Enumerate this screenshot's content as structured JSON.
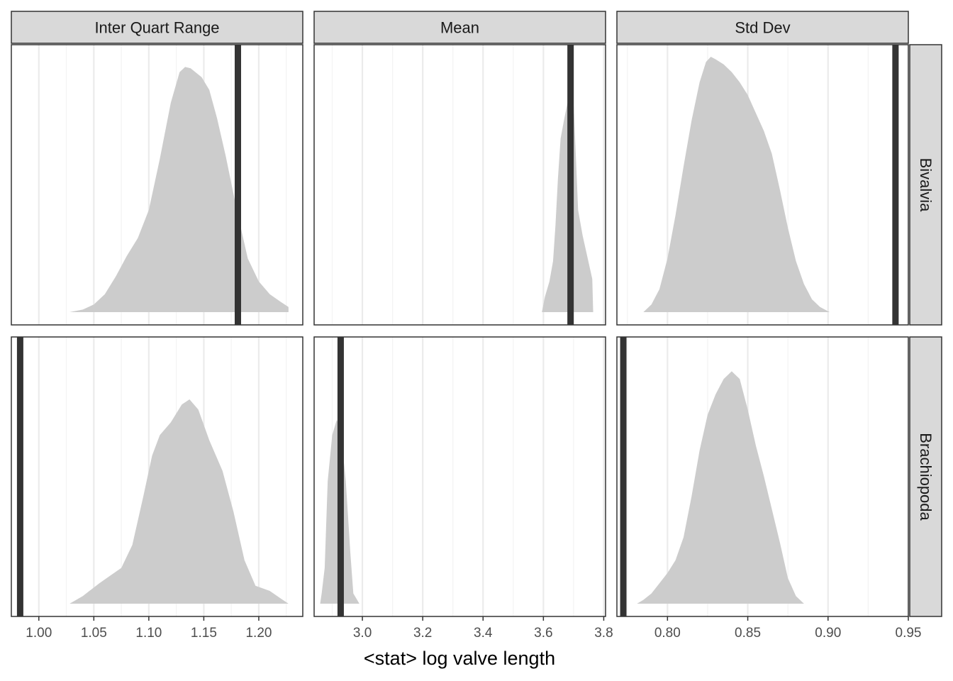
{
  "chart_data": {
    "type": "area",
    "xlabel": "<stat> log valve length",
    "ylabel": "",
    "grid": true,
    "columns": [
      "Inter Quart Range",
      "Mean",
      "Std Dev"
    ],
    "rows": [
      "Bivalvia",
      "Brachiopoda"
    ],
    "column_axes": [
      {
        "xlim": [
          0.975,
          1.24
        ],
        "ticks": [
          1.0,
          1.05,
          1.1,
          1.15,
          1.2
        ],
        "tick_labels": [
          "1.00",
          "1.05",
          "1.10",
          "1.15",
          "1.20"
        ]
      },
      {
        "xlim": [
          2.84,
          3.806
        ],
        "ticks": [
          3.0,
          3.2,
          3.4,
          3.6,
          3.8
        ],
        "tick_labels": [
          "3.0",
          "3.2",
          "3.4",
          "3.6",
          "3.8"
        ]
      },
      {
        "xlim": [
          0.7685,
          0.95
        ],
        "ticks": [
          0.8,
          0.85,
          0.9,
          0.95
        ],
        "tick_labels": [
          "0.80",
          "0.85",
          "0.90",
          "0.95"
        ]
      }
    ],
    "panels": [
      {
        "column": "Inter Quart Range",
        "row": "Bivalvia",
        "observed": 1.181,
        "density": [
          [
            1.028,
            0.0
          ],
          [
            1.04,
            0.01
          ],
          [
            1.05,
            0.03
          ],
          [
            1.06,
            0.07
          ],
          [
            1.07,
            0.14
          ],
          [
            1.08,
            0.22
          ],
          [
            1.09,
            0.29
          ],
          [
            1.1,
            0.4
          ],
          [
            1.11,
            0.6
          ],
          [
            1.12,
            0.82
          ],
          [
            1.128,
            0.94
          ],
          [
            1.133,
            0.96
          ],
          [
            1.138,
            0.955
          ],
          [
            1.148,
            0.92
          ],
          [
            1.155,
            0.87
          ],
          [
            1.162,
            0.76
          ],
          [
            1.17,
            0.61
          ],
          [
            1.18,
            0.4
          ],
          [
            1.19,
            0.21
          ],
          [
            1.2,
            0.12
          ],
          [
            1.21,
            0.07
          ],
          [
            1.22,
            0.04
          ],
          [
            1.227,
            0.02
          ],
          [
            1.227,
            0.0
          ]
        ]
      },
      {
        "column": "Mean",
        "row": "Bivalvia",
        "observed": 3.69,
        "density": [
          [
            3.595,
            0.0
          ],
          [
            3.605,
            0.06
          ],
          [
            3.62,
            0.12
          ],
          [
            3.632,
            0.2
          ],
          [
            3.64,
            0.34
          ],
          [
            3.648,
            0.52
          ],
          [
            3.657,
            0.68
          ],
          [
            3.668,
            0.75
          ],
          [
            3.68,
            0.82
          ],
          [
            3.69,
            0.9
          ],
          [
            3.7,
            0.82
          ],
          [
            3.708,
            0.6
          ],
          [
            3.715,
            0.4
          ],
          [
            3.73,
            0.3
          ],
          [
            3.745,
            0.22
          ],
          [
            3.762,
            0.13
          ],
          [
            3.765,
            0.0
          ]
        ]
      },
      {
        "column": "Std Dev",
        "row": "Bivalvia",
        "observed": 0.942,
        "density": [
          [
            0.785,
            0.0
          ],
          [
            0.79,
            0.03
          ],
          [
            0.795,
            0.09
          ],
          [
            0.8,
            0.21
          ],
          [
            0.805,
            0.38
          ],
          [
            0.81,
            0.57
          ],
          [
            0.815,
            0.75
          ],
          [
            0.82,
            0.9
          ],
          [
            0.824,
            0.98
          ],
          [
            0.827,
            1.0
          ],
          [
            0.83,
            0.99
          ],
          [
            0.835,
            0.97
          ],
          [
            0.84,
            0.94
          ],
          [
            0.845,
            0.9
          ],
          [
            0.85,
            0.85
          ],
          [
            0.855,
            0.78
          ],
          [
            0.86,
            0.71
          ],
          [
            0.865,
            0.62
          ],
          [
            0.87,
            0.48
          ],
          [
            0.875,
            0.33
          ],
          [
            0.88,
            0.2
          ],
          [
            0.885,
            0.11
          ],
          [
            0.89,
            0.05
          ],
          [
            0.895,
            0.02
          ],
          [
            0.901,
            0.0
          ]
        ]
      },
      {
        "column": "Inter Quart Range",
        "row": "Brachiopoda",
        "observed": 0.983,
        "density": [
          [
            1.028,
            0.0
          ],
          [
            1.04,
            0.03
          ],
          [
            1.055,
            0.08
          ],
          [
            1.065,
            0.11
          ],
          [
            1.075,
            0.14
          ],
          [
            1.085,
            0.23
          ],
          [
            1.095,
            0.42
          ],
          [
            1.103,
            0.58
          ],
          [
            1.11,
            0.66
          ],
          [
            1.12,
            0.71
          ],
          [
            1.13,
            0.78
          ],
          [
            1.137,
            0.8
          ],
          [
            1.145,
            0.76
          ],
          [
            1.155,
            0.64
          ],
          [
            1.167,
            0.52
          ],
          [
            1.177,
            0.36
          ],
          [
            1.187,
            0.17
          ],
          [
            1.197,
            0.07
          ],
          [
            1.21,
            0.05
          ],
          [
            1.22,
            0.02
          ],
          [
            1.227,
            0.0
          ]
        ]
      },
      {
        "column": "Mean",
        "row": "Brachiopoda",
        "observed": 2.928,
        "density": [
          [
            2.86,
            0.0
          ],
          [
            2.865,
            0.04
          ],
          [
            2.875,
            0.14
          ],
          [
            2.885,
            0.48
          ],
          [
            2.9,
            0.66
          ],
          [
            2.915,
            0.72
          ],
          [
            2.928,
            0.68
          ],
          [
            2.945,
            0.48
          ],
          [
            2.96,
            0.2
          ],
          [
            2.97,
            0.04
          ],
          [
            2.99,
            0.0
          ]
        ]
      },
      {
        "column": "Std Dev",
        "row": "Brachiopoda",
        "observed": 0.7725,
        "density": [
          [
            0.781,
            0.0
          ],
          [
            0.785,
            0.015
          ],
          [
            0.79,
            0.04
          ],
          [
            0.795,
            0.08
          ],
          [
            0.8,
            0.12
          ],
          [
            0.805,
            0.17
          ],
          [
            0.81,
            0.26
          ],
          [
            0.815,
            0.42
          ],
          [
            0.82,
            0.6
          ],
          [
            0.825,
            0.74
          ],
          [
            0.83,
            0.82
          ],
          [
            0.835,
            0.88
          ],
          [
            0.84,
            0.91
          ],
          [
            0.845,
            0.88
          ],
          [
            0.85,
            0.76
          ],
          [
            0.855,
            0.62
          ],
          [
            0.86,
            0.5
          ],
          [
            0.865,
            0.37
          ],
          [
            0.87,
            0.24
          ],
          [
            0.875,
            0.1
          ],
          [
            0.88,
            0.03
          ],
          [
            0.885,
            0.0
          ]
        ]
      }
    ]
  },
  "style": {
    "density_fill": "#cccccc",
    "observed_line_color": "#333333",
    "strip_fill": "#d9d9d9",
    "panel_border": "#333333",
    "grid_major": "#ebebeb",
    "grid_minor": "#f3f3f3"
  }
}
